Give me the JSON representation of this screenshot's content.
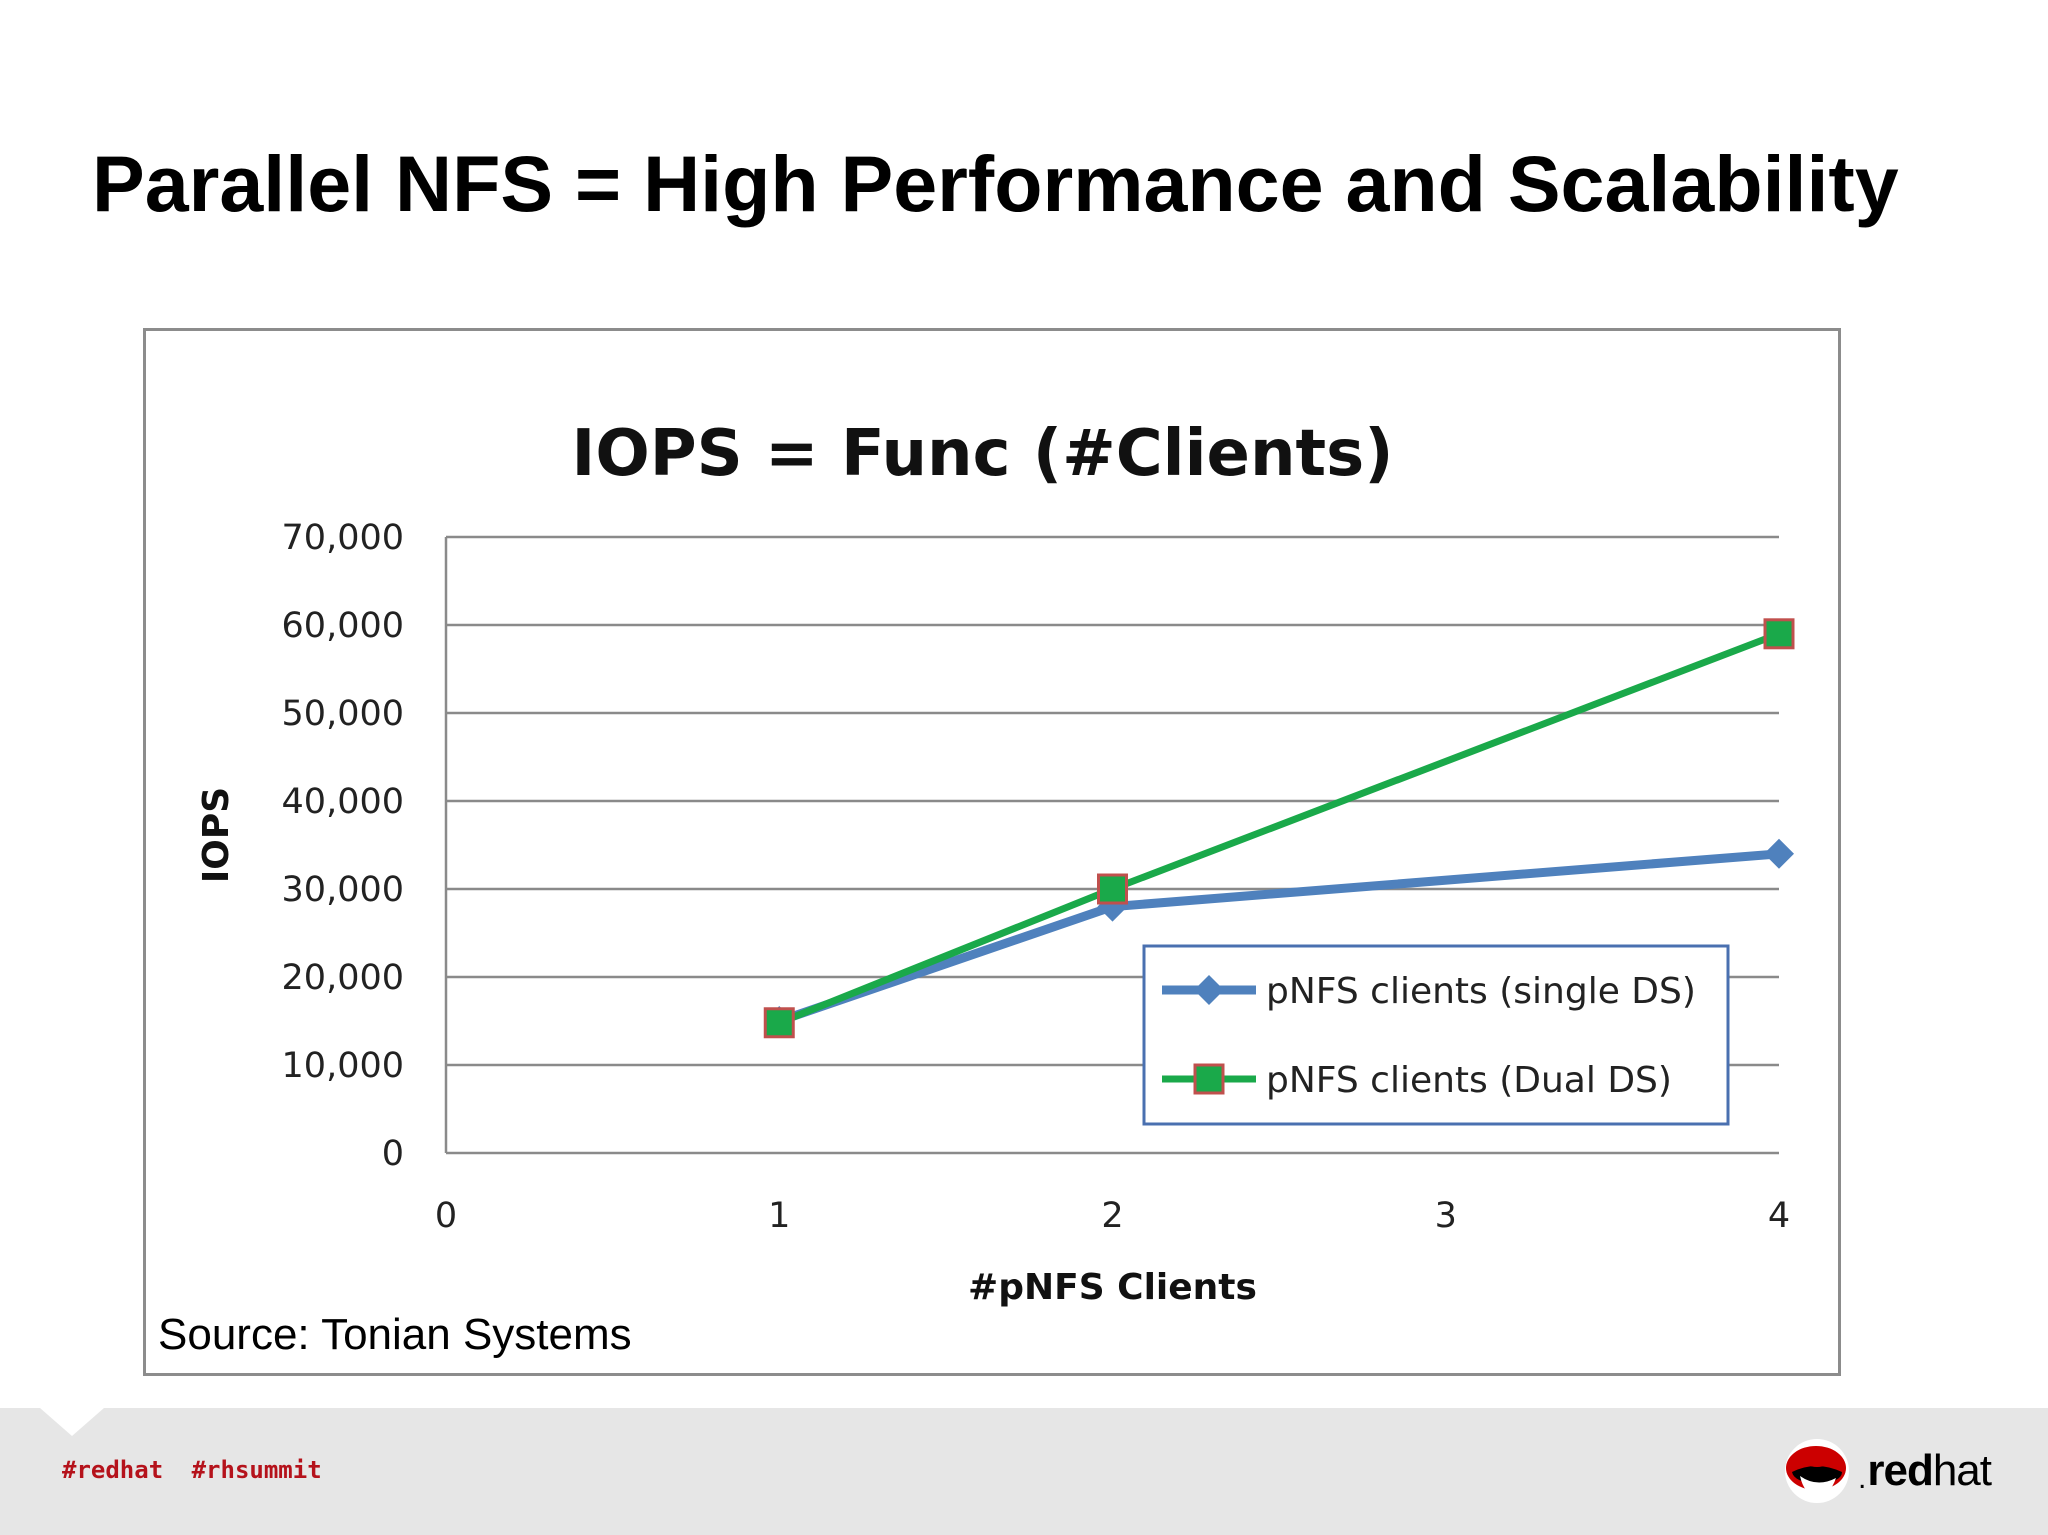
{
  "slide": {
    "title": "Parallel NFS = High Performance and Scalability",
    "source": "Source: Tonian Systems"
  },
  "footer": {
    "hashtags": [
      "#redhat",
      "#rhsummit"
    ],
    "brand_part1": "red",
    "brand_part2": "hat",
    "brand_mark": ".",
    "logo_icon": "redhat-shadowman-icon",
    "background_color": "#e6e6e6",
    "hashtag_color": "#b5121b"
  },
  "chart_data": {
    "type": "line",
    "title": "IOPS = Func (#Clients)",
    "xlabel": "#pNFS Clients",
    "ylabel": "IOPS",
    "xlim": [
      0,
      4
    ],
    "ylim": [
      0,
      70000
    ],
    "x_ticks": [
      "0",
      "1",
      "2",
      "3",
      "4"
    ],
    "y_ticks": [
      "0",
      "10,000",
      "20,000",
      "30,000",
      "40,000",
      "50,000",
      "60,000",
      "70,000"
    ],
    "grid": "horizontal",
    "legend_position": "bottom-right",
    "series": [
      {
        "name": "pNFS clients (single DS)",
        "color": "#4f81bd",
        "marker": "diamond",
        "x": [
          1,
          2,
          4
        ],
        "y": [
          15000,
          28000,
          34000
        ]
      },
      {
        "name": "pNFS clients (Dual DS)",
        "color": "#1aa94a",
        "marker": "square",
        "marker_edge": "#c0504d",
        "x": [
          1,
          2,
          4
        ],
        "y": [
          14800,
          30000,
          59000
        ]
      }
    ]
  }
}
